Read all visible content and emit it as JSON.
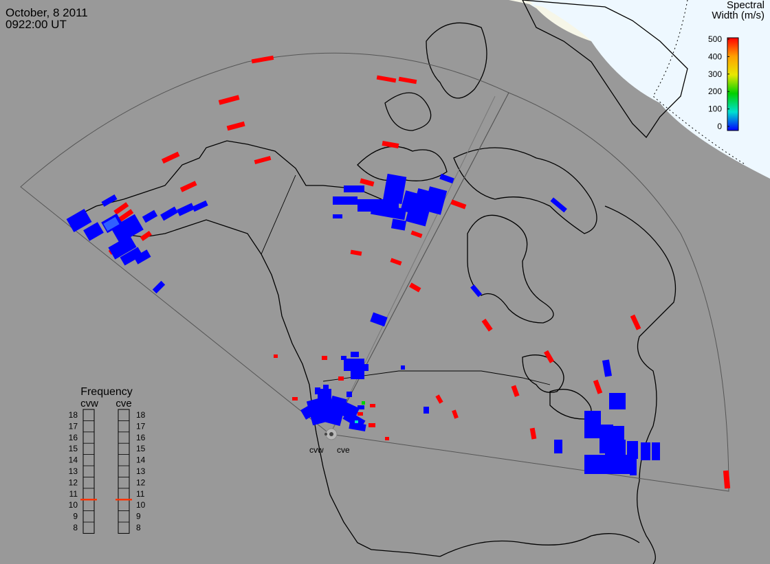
{
  "header": {
    "date": "October, 8 2011",
    "time": "0922:00 UT"
  },
  "colorbar": {
    "title_line1": "Spectral",
    "title_line2": "Width (m/s)",
    "ticks": [
      "500",
      "400",
      "300",
      "200",
      "100",
      "0"
    ],
    "colors": [
      "#ff0000",
      "#ffa000",
      "#e8e800",
      "#00d000",
      "#00e0d0",
      "#0000ff"
    ]
  },
  "sites": [
    "cvw",
    "cve"
  ],
  "frequency": {
    "title": "Frequency",
    "columns": [
      "cvw",
      "cve"
    ],
    "levels": [
      "18",
      "17",
      "16",
      "15",
      "14",
      "13",
      "12",
      "11",
      "10",
      "9",
      "8"
    ],
    "selected": {
      "cvw": 11,
      "cve": 11
    },
    "marker_color": "#ff3300"
  },
  "colors": {
    "ocean": "#999999",
    "daylight": "#eef8ff",
    "terminator": "#f6f6e8",
    "echo_low": "#0000ff",
    "echo_high": "#ff0000"
  }
}
